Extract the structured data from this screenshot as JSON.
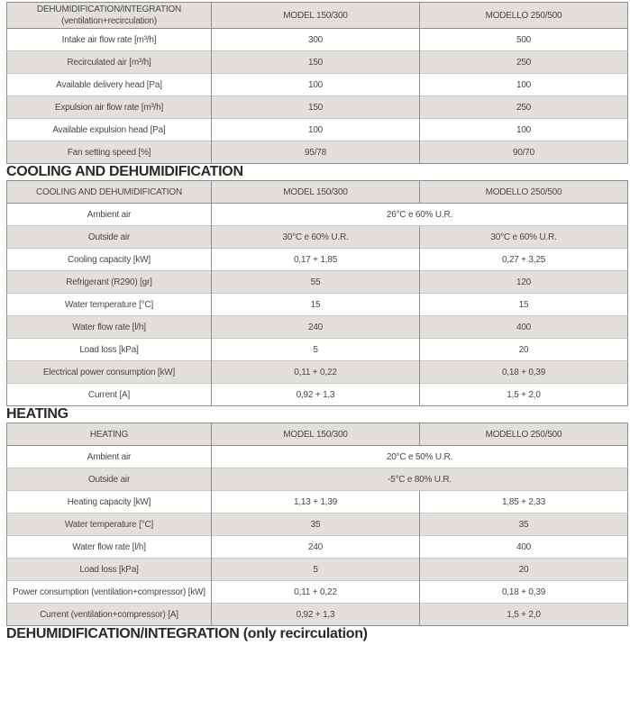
{
  "headings": {
    "cooling": "COOLING AND DEHUMIDIFICATION",
    "heating": "HEATING",
    "dehum_recirc": "DEHUMIDIFICATION/INTEGRATION (only recirculation)"
  },
  "colors": {
    "shaded_row_bg": "#e3e0dc",
    "outer_border": "#8d8d8d",
    "inner_row_border": "#cac7c3",
    "table_text": "#474747",
    "heading_text": "#2a2a2a"
  },
  "tables": [
    {
      "col1_header": "DEHUMIDIFICATION/INTEGRATION\n(ventilation+recirculation)",
      "col2_header": "MODEL 150/300",
      "col3_header": "MODELLO 250/500",
      "rows": [
        {
          "label": "Intake air flow rate [m³/h]",
          "values": [
            "300",
            "500"
          ]
        },
        {
          "label": "Recirculated air [m³/h]",
          "values": [
            "150",
            "250"
          ]
        },
        {
          "label": "Available delivery head [Pa]",
          "values": [
            "100",
            "100"
          ]
        },
        {
          "label": "Expulsion air flow rate [m³/h]",
          "values": [
            "150",
            "250"
          ]
        },
        {
          "label": "Available expulsion head [Pa]",
          "values": [
            "100",
            "100"
          ]
        },
        {
          "label": "Fan setting speed [%]",
          "values": [
            "95/78",
            "90/70"
          ]
        }
      ]
    },
    {
      "col1_header": "COOLING AND DEHUMIDIFICATION",
      "col2_header": "MODEL 150/300",
      "col3_header": "MODELLO 250/500",
      "rows": [
        {
          "label": "Ambient air",
          "span_value": "26°C e 60% U.R."
        },
        {
          "label": "Outside air",
          "values": [
            "30°C e 60% U.R.",
            "30°C e 60% U.R."
          ]
        },
        {
          "label": "Cooling capacity [kW]",
          "values": [
            "0,17 + 1,85",
            "0,27 + 3,25"
          ]
        },
        {
          "label": "Refrigerant (R290) [gr]",
          "values": [
            "55",
            "120"
          ]
        },
        {
          "label": "Water temperature [°C]",
          "values": [
            "15",
            "15"
          ]
        },
        {
          "label": "Water flow rate [l/h]",
          "values": [
            "240",
            "400"
          ]
        },
        {
          "label": "Load loss [kPa]",
          "values": [
            "5",
            "20"
          ]
        },
        {
          "label": "Electrical power consumption [kW]",
          "values": [
            "0,11 + 0,22",
            "0,18 + 0,39"
          ]
        },
        {
          "label": "Current [A]",
          "values": [
            "0,92 + 1,3",
            "1,5 + 2,0"
          ]
        }
      ]
    },
    {
      "col1_header": "HEATING",
      "col2_header": "MODEL 150/300",
      "col3_header": "MODELLO 250/500",
      "rows": [
        {
          "label": "Ambient air",
          "span_value": "20°C e 50% U.R."
        },
        {
          "label": "Outside air",
          "span_value": "-5°C e 80% U.R."
        },
        {
          "label": "Heating capacity [kW]",
          "values": [
            "1,13 + 1,39",
            "1,85 + 2,33"
          ]
        },
        {
          "label": "Water temperature [°C]",
          "values": [
            "35",
            "35"
          ]
        },
        {
          "label": "Water flow rate [l/h]",
          "values": [
            "240",
            "400"
          ]
        },
        {
          "label": "Load loss [kPa]",
          "values": [
            "5",
            "20"
          ]
        },
        {
          "label": "Power consumption (ventilation+compressor) [kW]",
          "values": [
            "0,11 + 0,22",
            "0,18 + 0,39"
          ]
        },
        {
          "label": "Current (ventilation+compressor) [A]",
          "values": [
            "0,92 + 1,3",
            "1,5 + 2,0"
          ]
        }
      ]
    }
  ]
}
